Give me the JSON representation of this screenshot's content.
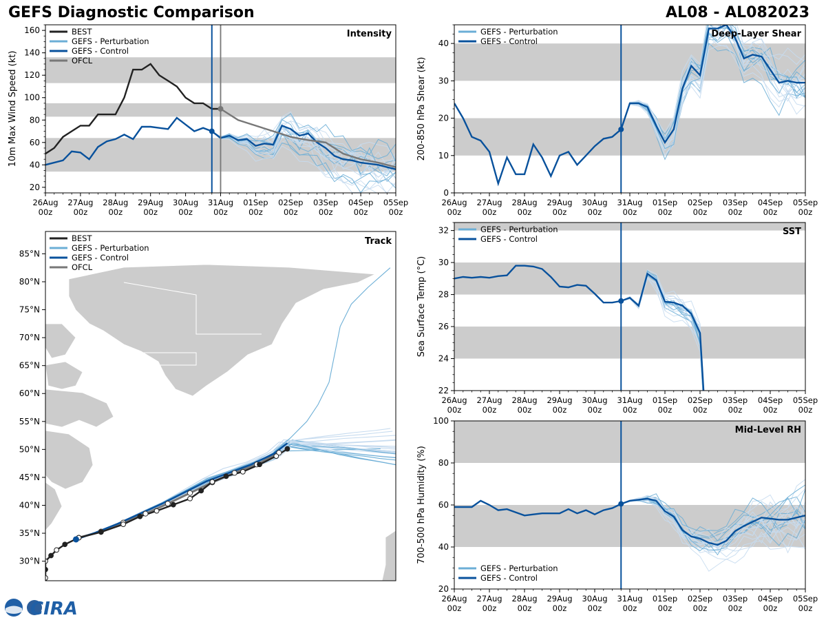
{
  "header": {
    "title": "GEFS Diagnostic Comparison",
    "storm": "AL08 - AL082023"
  },
  "colors": {
    "best": "#222222",
    "pert": "#6baed6",
    "pert_light": "#c6dbef",
    "control": "#08519c",
    "ofcl": "#777777",
    "band": "#cccccc",
    "land": "#cccccc"
  },
  "time_axis": {
    "days": [
      "26Aug",
      "27Aug",
      "28Aug",
      "29Aug",
      "30Aug",
      "31Aug",
      "01Sep",
      "02Sep",
      "03Sep",
      "04Sep",
      "05Sep"
    ],
    "hour": "00z",
    "init_day": 4.75
  },
  "legend": {
    "best": "BEST",
    "pert": "GEFS - Perturbation",
    "control": "GEFS - Control",
    "ofcl": "OFCL"
  },
  "logo_text": "CIRA",
  "chart_data": [
    {
      "id": "intensity",
      "type": "line",
      "title": "Intensity",
      "ylabel": "10m Max Wind Speed (kt)",
      "ylim": [
        15,
        165
      ],
      "yticks": [
        20,
        40,
        60,
        80,
        100,
        120,
        140,
        160
      ],
      "bands": [
        [
          34,
          64
        ],
        [
          83,
          95
        ],
        [
          113,
          136
        ]
      ],
      "ofcl_line_day": 5.0,
      "series": [
        {
          "name": "BEST",
          "x": [
            0,
            0.25,
            0.5,
            0.75,
            1.0,
            1.25,
            1.5,
            1.75,
            2.0,
            2.25,
            2.5,
            2.75,
            3.0,
            3.25,
            3.5,
            3.75,
            4.0,
            4.25,
            4.5,
            4.75,
            5.0
          ],
          "y": [
            50,
            55,
            65,
            70,
            75,
            75,
            85,
            85,
            85,
            100,
            125,
            125,
            130,
            120,
            115,
            110,
            100,
            95,
            95,
            90,
            90
          ]
        },
        {
          "name": "GEFS - Control",
          "x": [
            0,
            0.25,
            0.5,
            0.75,
            1.0,
            1.25,
            1.5,
            1.75,
            2.0,
            2.25,
            2.5,
            2.75,
            3.0,
            3.25,
            3.5,
            3.75,
            4.0,
            4.25,
            4.5,
            4.75,
            5.0,
            5.25,
            5.5,
            5.75,
            6.0,
            6.25,
            6.5,
            6.75,
            7.0,
            7.25,
            7.5,
            7.75,
            8.0,
            8.25,
            8.5,
            8.75,
            9.0,
            9.25,
            9.5,
            9.75,
            10.0
          ],
          "y": [
            40,
            42,
            44,
            52,
            51,
            45,
            56,
            61,
            63,
            67,
            63,
            74,
            74,
            73,
            72,
            82,
            76,
            70,
            73,
            70,
            64,
            66,
            62,
            63,
            57,
            59,
            58,
            75,
            72,
            66,
            68,
            60,
            55,
            48,
            45,
            44,
            42,
            41,
            40,
            38,
            36
          ]
        },
        {
          "name": "OFCL",
          "x": [
            5.0,
            5.5,
            6.0,
            6.5,
            7.0,
            7.5,
            8.0,
            8.5,
            9.0,
            9.5,
            10.0
          ],
          "y": [
            90,
            80,
            75,
            70,
            65,
            62,
            60,
            50,
            45,
            42,
            38
          ]
        }
      ]
    },
    {
      "id": "shear",
      "type": "line",
      "title": "Deep-Layer Shear",
      "ylabel": "200-850 hPa Shear (kt)",
      "ylim": [
        0,
        45
      ],
      "yticks": [
        0,
        10,
        20,
        30,
        40
      ],
      "bands": [
        [
          10,
          20
        ],
        [
          30,
          40
        ]
      ],
      "series": [
        {
          "name": "GEFS - Control",
          "x": [
            0,
            0.25,
            0.5,
            0.75,
            1.0,
            1.25,
            1.5,
            1.75,
            2.0,
            2.25,
            2.5,
            2.75,
            3.0,
            3.25,
            3.5,
            3.75,
            4.0,
            4.25,
            4.5,
            4.75,
            5.0,
            5.25,
            5.5,
            5.75,
            6.0,
            6.25,
            6.5,
            6.75,
            7.0,
            7.25,
            7.5,
            7.75,
            8.0,
            8.25,
            8.5,
            8.75,
            9.0,
            9.25,
            9.5,
            9.75,
            10.0
          ],
          "y": [
            24,
            20,
            15,
            14,
            11,
            2.5,
            9.5,
            5,
            5,
            13,
            9.5,
            4.5,
            10,
            11,
            7.5,
            10,
            12.5,
            14.5,
            15,
            17,
            24,
            24,
            23,
            18,
            13.5,
            17,
            28,
            34,
            31.5,
            44,
            44,
            45,
            41.5,
            36,
            37,
            36.5,
            33,
            29.5,
            30,
            29.5,
            29.5
          ]
        }
      ]
    },
    {
      "id": "sst",
      "type": "line",
      "title": "SST",
      "ylabel": "Sea Surface Temp (°C)",
      "ylim": [
        22,
        32.5
      ],
      "yticks": [
        22,
        24,
        26,
        28,
        30,
        32
      ],
      "bands": [
        [
          24,
          26
        ],
        [
          28,
          30
        ],
        [
          32,
          34
        ]
      ],
      "series": [
        {
          "name": "GEFS - Control",
          "x": [
            0,
            0.25,
            0.5,
            0.75,
            1.0,
            1.25,
            1.5,
            1.75,
            2.0,
            2.25,
            2.5,
            2.75,
            3.0,
            3.25,
            3.5,
            3.75,
            4.0,
            4.25,
            4.5,
            4.75,
            5.0,
            5.25,
            5.5,
            5.75,
            6.0,
            6.25,
            6.5,
            6.75,
            7.0,
            7.1
          ],
          "y": [
            29,
            29.1,
            29.05,
            29.1,
            29.05,
            29.15,
            29.2,
            29.8,
            29.8,
            29.75,
            29.6,
            29.1,
            28.5,
            28.45,
            28.6,
            28.55,
            28.05,
            27.5,
            27.5,
            27.6,
            27.8,
            27.3,
            29.3,
            28.9,
            27.55,
            27.5,
            27.3,
            26.8,
            25.6,
            22
          ]
        }
      ]
    },
    {
      "id": "rh",
      "type": "line",
      "title": "Mid-Level RH",
      "ylabel": "700-500 hPa Humidity (%)",
      "ylim": [
        20,
        100
      ],
      "yticks": [
        20,
        40,
        60,
        80,
        100
      ],
      "bands": [
        [
          40,
          60
        ],
        [
          80,
          100
        ]
      ],
      "series": [
        {
          "name": "GEFS - Control",
          "x": [
            0,
            0.25,
            0.5,
            0.75,
            1.0,
            1.25,
            1.5,
            1.75,
            2.0,
            2.25,
            2.5,
            2.75,
            3.0,
            3.25,
            3.5,
            3.75,
            4.0,
            4.25,
            4.5,
            4.75,
            5.0,
            5.25,
            5.5,
            5.75,
            6.0,
            6.25,
            6.5,
            6.75,
            7.0,
            7.25,
            7.5,
            7.75,
            8.0,
            8.25,
            8.5,
            8.75,
            9.0,
            9.25,
            9.5,
            9.75,
            10.0
          ],
          "y": [
            59,
            59,
            59,
            62,
            60,
            57.5,
            58,
            56.5,
            55,
            55.5,
            56,
            56,
            56,
            58,
            56,
            57.5,
            55.5,
            57.5,
            58.5,
            60.5,
            62,
            62.5,
            63,
            62,
            57,
            54.5,
            48,
            45,
            44,
            42,
            41,
            43,
            47.5,
            50,
            52,
            54,
            53.5,
            53,
            53,
            54,
            55
          ]
        }
      ]
    },
    {
      "id": "track",
      "type": "map",
      "title": "Track",
      "lat_ticks": [
        "30°N",
        "35°N",
        "40°N",
        "45°N",
        "50°N",
        "55°N",
        "60°N",
        "65°N",
        "70°N",
        "75°N",
        "80°N",
        "85°N"
      ],
      "lat_values": [
        30,
        35,
        40,
        45,
        50,
        55,
        60,
        65,
        70,
        75,
        80,
        85
      ],
      "lat_range": [
        26.5,
        89
      ],
      "lon_range": [
        -91,
        -28
      ],
      "best_track": [
        [
          -91,
          27
        ],
        [
          -91,
          28.5
        ],
        [
          -91,
          30
        ],
        [
          -90,
          31
        ],
        [
          -89,
          32
        ],
        [
          -87.5,
          33
        ],
        [
          -85,
          34.2
        ],
        [
          -81,
          35.2
        ],
        [
          -77,
          36.6
        ],
        [
          -74,
          38
        ],
        [
          -71,
          39
        ],
        [
          -68,
          40.1
        ],
        [
          -65,
          41.2
        ],
        [
          -63,
          42.6
        ],
        [
          -61,
          44.2
        ],
        [
          -58.5,
          45.2
        ],
        [
          -55.5,
          46
        ],
        [
          -52.5,
          47.3
        ],
        [
          -49.5,
          48.8
        ],
        [
          -47.5,
          50.1
        ]
      ],
      "control_track": [
        [
          -85.5,
          33.9
        ],
        [
          -82,
          35.1
        ],
        [
          -78,
          36.7
        ],
        [
          -74,
          38.5
        ],
        [
          -70,
          40.3
        ],
        [
          -66,
          42.3
        ],
        [
          -62,
          44.3
        ],
        [
          -58,
          45.8
        ],
        [
          -54,
          47.3
        ],
        [
          -50,
          49.2
        ],
        [
          -47.5,
          51.1
        ]
      ],
      "ofcl_track": [
        [
          -85,
          34.2
        ],
        [
          -81,
          35.3
        ],
        [
          -77,
          36.9
        ],
        [
          -73,
          38.5
        ],
        [
          -69,
          40.3
        ],
        [
          -65,
          42.2
        ],
        [
          -61,
          44.1
        ],
        [
          -57,
          45.8
        ],
        [
          -53,
          47.3
        ],
        [
          -49,
          49.4
        ]
      ]
    }
  ]
}
